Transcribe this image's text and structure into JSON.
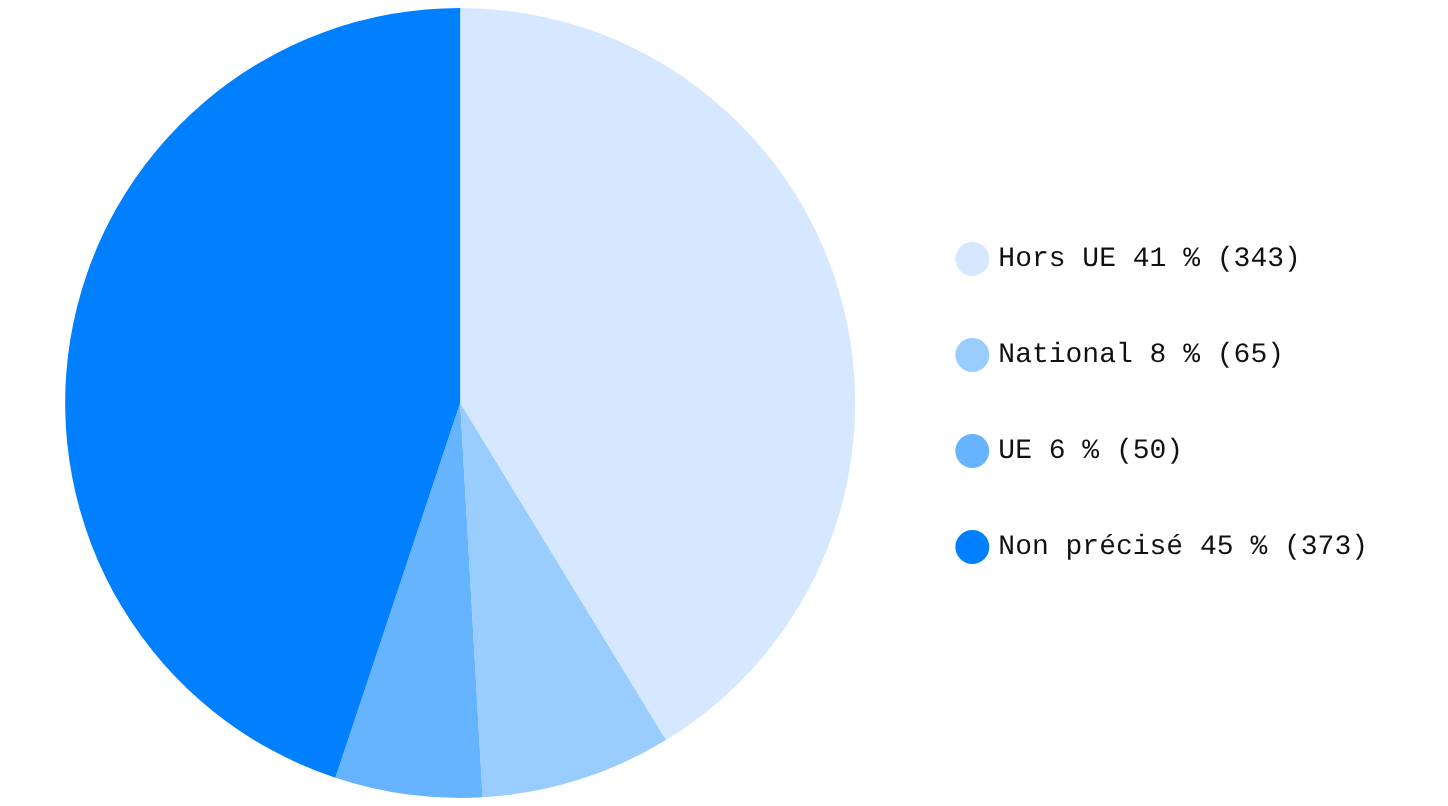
{
  "chart_data": {
    "type": "pie",
    "categories": [
      "Hors UE 41 % (343)",
      "National 8 % (65)",
      "UE 6 % (50)",
      "Non précisé 45 % (373)"
    ],
    "values": [
      343,
      65,
      50,
      373
    ],
    "colors": [
      "#d6e8ff",
      "#99ccff",
      "#66b3ff",
      "#0080ff"
    ],
    "legend": "right"
  }
}
